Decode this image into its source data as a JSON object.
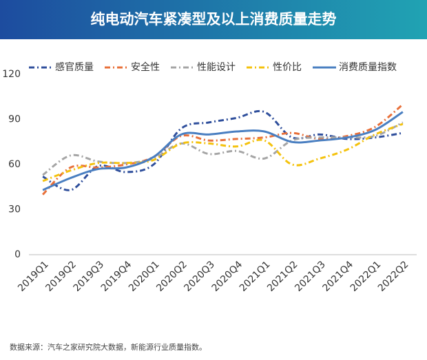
{
  "chart_data": {
    "type": "line",
    "title": "纯电动汽车紧凑型及以上消费质量走势",
    "source": "数据来源：汽车之家研究院大数据，新能源行业质量指数。",
    "categories": [
      "2019Q1",
      "2019Q2",
      "2019Q3",
      "2019Q4",
      "2020Q1",
      "2020Q2",
      "2020Q3",
      "2020Q4",
      "2021Q1",
      "2021Q2",
      "2021Q3",
      "2021Q4",
      "2022Q1",
      "2022Q2"
    ],
    "series": [
      {
        "name": "感官质量",
        "color": "#2f4f9c",
        "dash": "8 4 2 4",
        "values": [
          52,
          43,
          59,
          55,
          60,
          84,
          88,
          91,
          95,
          78,
          80,
          77,
          78,
          81
        ]
      },
      {
        "name": "安全性",
        "color": "#e8703a",
        "dash": "8 4 2 4",
        "values": [
          40,
          58,
          58,
          60,
          65,
          79,
          76,
          77,
          78,
          81,
          77,
          79,
          85,
          100
        ]
      },
      {
        "name": "性能设计",
        "color": "#a5a5a5",
        "dash": "8 4 2 4",
        "values": [
          53,
          66,
          62,
          61,
          64,
          74,
          67,
          69,
          64,
          76,
          78,
          78,
          79,
          88
        ]
      },
      {
        "name": "性价比",
        "color": "#f4c20d",
        "dash": "8 4 2 4",
        "values": [
          49,
          56,
          61,
          61,
          63,
          74,
          74,
          72,
          76,
          60,
          64,
          70,
          80,
          87
        ]
      },
      {
        "name": "消费质量指数",
        "color": "#4a7fc1",
        "dash": "none",
        "values": [
          43,
          51,
          57,
          58,
          65,
          80,
          80,
          82,
          82,
          75,
          76,
          78,
          83,
          95
        ]
      }
    ],
    "ylim": [
      0,
      120
    ],
    "yticks": [
      0,
      30,
      60,
      90,
      120
    ],
    "smooth": true,
    "legend": "top"
  }
}
